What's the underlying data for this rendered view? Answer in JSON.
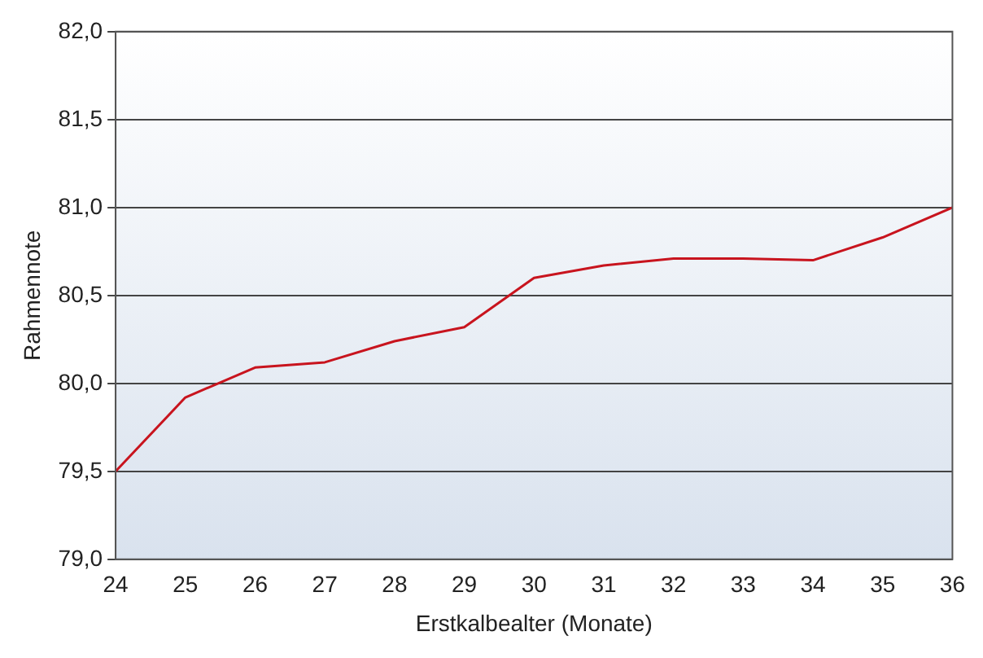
{
  "chart_data": {
    "type": "line",
    "xlabel": "Erstkalbealter (Monate)",
    "ylabel": "Rahmennote",
    "categories": [
      "24",
      "25",
      "26",
      "27",
      "28",
      "29",
      "30",
      "31",
      "32",
      "33",
      "34",
      "35",
      "36"
    ],
    "series": [
      {
        "color": "#c8141e",
        "values": [
          79.5,
          79.92,
          80.09,
          80.12,
          80.24,
          80.32,
          80.6,
          80.67,
          80.71,
          80.71,
          80.7,
          80.83,
          81.0
        ]
      }
    ],
    "ylim": [
      79,
      82
    ],
    "yticks": [
      {
        "value": 79,
        "label": "79,0"
      },
      {
        "value": 79.5,
        "label": "79,5"
      },
      {
        "value": 80,
        "label": "80,0"
      },
      {
        "value": 80.5,
        "label": "80,5"
      },
      {
        "value": 81,
        "label": "81,0"
      },
      {
        "value": 81.5,
        "label": "81,5"
      },
      {
        "value": 82,
        "label": "82,0"
      }
    ],
    "grid": "y",
    "legend": false,
    "marker": "none",
    "line_style": "solid"
  }
}
